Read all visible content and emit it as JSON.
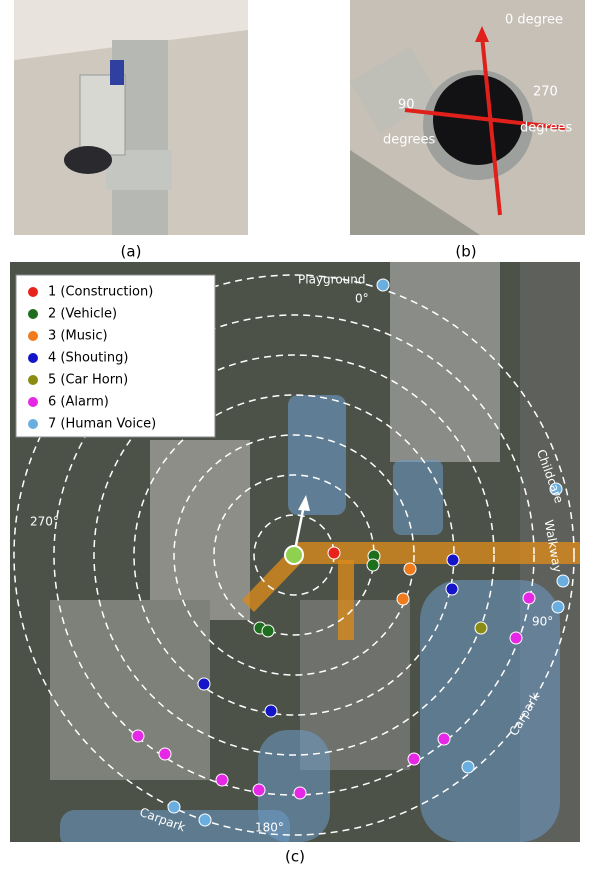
{
  "panels": {
    "a": {
      "caption": "(a)"
    },
    "b": {
      "caption": "(b)",
      "labels": [
        "0 degree",
        "90",
        "degrees",
        "270",
        "degrees"
      ]
    },
    "c": {
      "caption": "(c)",
      "legend": [
        {
          "name": "1 (Construction)",
          "color": "#e8231c"
        },
        {
          "name": "2 (Vehicle)",
          "color": "#1e6e1e"
        },
        {
          "name": "3 (Music)",
          "color": "#f07a1c"
        },
        {
          "name": "4 (Shouting)",
          "color": "#1414c8"
        },
        {
          "name": "5 (Car Horn)",
          "color": "#8c8c14"
        },
        {
          "name": "6 (Alarm)",
          "color": "#e628e6"
        },
        {
          "name": "7 (Human Voice)",
          "color": "#6aaee0"
        }
      ],
      "places": [
        "Playground",
        "Childcare",
        "Walkway",
        "Carpark",
        "Carpark"
      ],
      "angles": [
        "0°",
        "90°",
        "180°",
        "270°"
      ]
    }
  }
}
